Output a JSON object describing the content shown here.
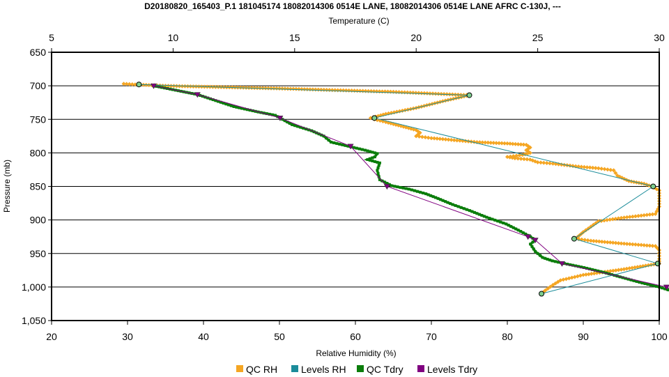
{
  "chart_data": {
    "type": "scatter",
    "title": "D20180820_165403_P.1 181045174 18082014306 0514E LANE, 18082014306 0514E LANE AFRC C-130J, ---",
    "x_top": {
      "label": "Temperature (C)",
      "range": [
        5,
        30
      ],
      "ticks": [
        5,
        10,
        15,
        20,
        25,
        30
      ]
    },
    "x_bottom": {
      "label": "Relative Humidity (%)",
      "range": [
        20,
        100
      ],
      "ticks": [
        20,
        30,
        40,
        50,
        60,
        70,
        80,
        90,
        100
      ]
    },
    "y": {
      "label": "Pressure (mb)",
      "range": [
        650,
        1050
      ],
      "inverted": true,
      "ticks": [
        650,
        700,
        750,
        800,
        850,
        900,
        950,
        1000,
        1050
      ],
      "tick_labels": [
        "650",
        "700",
        "750",
        "800",
        "850",
        "900",
        "950",
        "1,000",
        "1,050"
      ]
    },
    "grid": true,
    "legend_position": "bottom",
    "series": [
      {
        "name": "QC RH",
        "axis": "rh",
        "color": "#F5A623",
        "marker": "diamond",
        "points": [
          [
            29.5,
            697
          ],
          [
            31,
            698
          ],
          [
            35,
            700
          ],
          [
            50,
            704
          ],
          [
            65,
            709
          ],
          [
            75,
            714
          ],
          [
            71.5,
            723
          ],
          [
            68,
            733
          ],
          [
            64,
            742
          ],
          [
            62,
            748
          ],
          [
            62.5,
            750
          ],
          [
            64,
            754
          ],
          [
            66,
            760
          ],
          [
            68,
            766
          ],
          [
            68.5,
            770
          ],
          [
            68,
            775
          ],
          [
            70,
            778
          ],
          [
            73,
            781
          ],
          [
            76,
            784
          ],
          [
            80,
            786
          ],
          [
            82.5,
            788
          ],
          [
            83,
            792
          ],
          [
            82.5,
            796
          ],
          [
            83,
            800
          ],
          [
            82,
            803
          ],
          [
            80,
            806
          ],
          [
            81,
            808
          ],
          [
            83,
            810
          ],
          [
            84,
            814
          ],
          [
            86,
            816
          ],
          [
            89,
            820
          ],
          [
            92,
            823
          ],
          [
            94,
            826
          ],
          [
            94.5,
            834
          ],
          [
            96,
            842
          ],
          [
            98,
            846
          ],
          [
            99,
            850
          ],
          [
            100,
            856
          ],
          [
            100,
            868
          ],
          [
            100,
            880
          ],
          [
            99.5,
            891
          ],
          [
            95,
            897
          ],
          [
            92,
            902
          ],
          [
            91,
            910
          ],
          [
            90,
            918
          ],
          [
            89,
            928
          ],
          [
            91,
            931
          ],
          [
            95,
            935
          ],
          [
            99.5,
            939
          ],
          [
            100,
            945
          ],
          [
            100,
            958
          ],
          [
            100,
            965
          ],
          [
            95,
            974
          ],
          [
            90,
            982
          ],
          [
            87,
            990
          ],
          [
            86,
            997
          ],
          [
            85,
            1005
          ],
          [
            84.5,
            1010
          ]
        ]
      },
      {
        "name": "Levels RH",
        "axis": "rh",
        "color": "#1B8C9A",
        "marker": "circle",
        "points": [
          [
            31.5,
            698
          ],
          [
            75,
            714
          ],
          [
            62.5,
            748
          ],
          [
            99.2,
            850
          ],
          [
            88.8,
            928
          ],
          [
            99.8,
            965
          ],
          [
            84.5,
            1010
          ]
        ]
      },
      {
        "name": "QC Tdry",
        "axis": "temp",
        "color": "#0B7D0B",
        "marker": "square",
        "points": [
          [
            9.2,
            700
          ],
          [
            11,
            713
          ],
          [
            12.5,
            731
          ],
          [
            13.5,
            739
          ],
          [
            14.2,
            744
          ],
          [
            14.4,
            748
          ],
          [
            14.9,
            758
          ],
          [
            15.7,
            767
          ],
          [
            16.2,
            775
          ],
          [
            16.5,
            784
          ],
          [
            17.2,
            790
          ],
          [
            17.9,
            796
          ],
          [
            18.4,
            801
          ],
          [
            18.3,
            806
          ],
          [
            18.0,
            810
          ],
          [
            18.5,
            815
          ],
          [
            18.4,
            826
          ],
          [
            18.5,
            840
          ],
          [
            19.0,
            849
          ],
          [
            19.7,
            854
          ],
          [
            20.4,
            861
          ],
          [
            20.9,
            868
          ],
          [
            21.5,
            877
          ],
          [
            22.2,
            886
          ],
          [
            22.9,
            896
          ],
          [
            23.7,
            906
          ],
          [
            24.3,
            917
          ],
          [
            24.7,
            925
          ],
          [
            24.9,
            930
          ],
          [
            24.7,
            936
          ],
          [
            24.9,
            947
          ],
          [
            25.2,
            956
          ],
          [
            25.6,
            961
          ],
          [
            26.1,
            965
          ],
          [
            26.9,
            971
          ],
          [
            27.7,
            978
          ],
          [
            28.5,
            986
          ],
          [
            29.3,
            994
          ],
          [
            30.0,
            1000
          ],
          [
            30.6,
            1007
          ],
          [
            31.0,
            1012
          ]
        ]
      },
      {
        "name": "Levels Tdry",
        "axis": "temp",
        "color": "#800080",
        "marker": "triangle",
        "points": [
          [
            9.2,
            700
          ],
          [
            11.0,
            713
          ],
          [
            14.4,
            748
          ],
          [
            17.3,
            790
          ],
          [
            18.8,
            850
          ],
          [
            24.6,
            925
          ],
          [
            24.9,
            930
          ],
          [
            26.0,
            965
          ],
          [
            30.3,
            1000
          ],
          [
            31.0,
            1012
          ]
        ]
      }
    ]
  }
}
